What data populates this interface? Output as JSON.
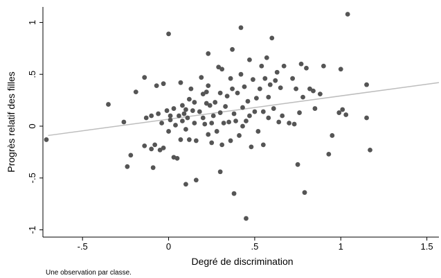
{
  "note": "Une observation par classe.",
  "colors": {
    "point": "#555555",
    "fit_line": "#bdbdbd",
    "axis": "#000000",
    "background": "#ffffff"
  },
  "chart_data": {
    "type": "scatter",
    "xlabel": "Degré de discrimination",
    "ylabel": "Progrès relatif des filles",
    "xlim": [
      -0.73,
      1.57
    ],
    "ylim": [
      -1.07,
      1.15
    ],
    "x_ticks": [
      -0.5,
      0,
      0.5,
      1,
      1.5
    ],
    "x_tick_labels": [
      "-.5",
      "0",
      ".5",
      "1",
      "1.5"
    ],
    "y_ticks": [
      -1,
      -0.5,
      0,
      0.5,
      1
    ],
    "y_tick_labels": [
      "-1",
      "-.5",
      "0",
      ".5",
      "1"
    ],
    "grid": false,
    "legend": "none",
    "fit_line": {
      "x": [
        -0.7,
        1.57
      ],
      "y": [
        -0.09,
        0.42
      ]
    },
    "points": [
      [
        -0.71,
        -0.13
      ],
      [
        -0.35,
        0.21
      ],
      [
        -0.26,
        0.04
      ],
      [
        -0.24,
        -0.39
      ],
      [
        -0.22,
        -0.28
      ],
      [
        -0.19,
        0.33
      ],
      [
        -0.14,
        0.47
      ],
      [
        -0.14,
        -0.19
      ],
      [
        -0.13,
        0.08
      ],
      [
        -0.1,
        0.1
      ],
      [
        -0.1,
        -0.22
      ],
      [
        -0.09,
        -0.4
      ],
      [
        -0.08,
        -0.18
      ],
      [
        -0.07,
        0.39
      ],
      [
        -0.06,
        0.12
      ],
      [
        -0.05,
        -0.23
      ],
      [
        -0.04,
        0.03
      ],
      [
        -0.03,
        -0.21
      ],
      [
        -0.03,
        0.41
      ],
      [
        -0.01,
        0.15
      ],
      [
        0.0,
        0.89
      ],
      [
        0.0,
        -0.05
      ],
      [
        0.01,
        0.06
      ],
      [
        0.01,
        0.1
      ],
      [
        0.03,
        0.17
      ],
      [
        0.03,
        -0.3
      ],
      [
        0.04,
        0.01
      ],
      [
        0.05,
        -0.31
      ],
      [
        0.06,
        0.1
      ],
      [
        0.07,
        -0.13
      ],
      [
        0.07,
        0.42
      ],
      [
        0.08,
        0.2
      ],
      [
        0.08,
        0.05
      ],
      [
        0.09,
        0.12
      ],
      [
        0.1,
        0.16
      ],
      [
        0.1,
        -0.56
      ],
      [
        0.1,
        -0.03
      ],
      [
        0.11,
        0.08
      ],
      [
        0.12,
        0.26
      ],
      [
        0.12,
        -0.13
      ],
      [
        0.13,
        0.36
      ],
      [
        0.14,
        0.15
      ],
      [
        0.15,
        0.03
      ],
      [
        0.15,
        0.23
      ],
      [
        0.16,
        -0.52
      ],
      [
        0.16,
        -0.14
      ],
      [
        0.18,
        0.14
      ],
      [
        0.19,
        0.47
      ],
      [
        0.2,
        0.31
      ],
      [
        0.2,
        0.08
      ],
      [
        0.21,
        0.02
      ],
      [
        0.22,
        0.33
      ],
      [
        0.22,
        0.22
      ],
      [
        0.23,
        0.39
      ],
      [
        0.23,
        -0.08
      ],
      [
        0.23,
        0.7
      ],
      [
        0.24,
        0.2
      ],
      [
        0.25,
        0.03
      ],
      [
        0.25,
        -0.16
      ],
      [
        0.26,
        0.1
      ],
      [
        0.27,
        0.23
      ],
      [
        0.28,
        -0.05
      ],
      [
        0.29,
        0.57
      ],
      [
        0.3,
        0.13
      ],
      [
        0.3,
        0.32
      ],
      [
        0.3,
        -0.44
      ],
      [
        0.31,
        0.55
      ],
      [
        0.31,
        -0.18
      ],
      [
        0.32,
        0.03
      ],
      [
        0.33,
        0.19
      ],
      [
        0.34,
        0.29
      ],
      [
        0.35,
        0.04
      ],
      [
        0.36,
        -0.14
      ],
      [
        0.36,
        0.46
      ],
      [
        0.37,
        0.36
      ],
      [
        0.37,
        0.74
      ],
      [
        0.38,
        0.12
      ],
      [
        0.38,
        -0.65
      ],
      [
        0.39,
        0.05
      ],
      [
        0.4,
        0.32
      ],
      [
        0.41,
        -0.09
      ],
      [
        0.42,
        0.5
      ],
      [
        0.42,
        0.95
      ],
      [
        0.43,
        0.18
      ],
      [
        0.43,
        0.0
      ],
      [
        0.44,
        0.38
      ],
      [
        0.45,
        0.05
      ],
      [
        0.45,
        -0.89
      ],
      [
        0.46,
        0.24
      ],
      [
        0.47,
        0.1
      ],
      [
        0.47,
        0.64
      ],
      [
        0.48,
        -0.2
      ],
      [
        0.49,
        0.45
      ],
      [
        0.5,
        0.14
      ],
      [
        0.51,
        0.27
      ],
      [
        0.52,
        -0.05
      ],
      [
        0.53,
        0.36
      ],
      [
        0.54,
        0.58
      ],
      [
        0.55,
        0.14
      ],
      [
        0.55,
        -0.18
      ],
      [
        0.56,
        0.46
      ],
      [
        0.57,
        0.66
      ],
      [
        0.58,
        0.08
      ],
      [
        0.58,
        0.28
      ],
      [
        0.59,
        0.4
      ],
      [
        0.6,
        0.85
      ],
      [
        0.61,
        0.17
      ],
      [
        0.62,
        0.44
      ],
      [
        0.63,
        0.52
      ],
      [
        0.64,
        0.04
      ],
      [
        0.65,
        0.37
      ],
      [
        0.66,
        0.1
      ],
      [
        0.67,
        0.58
      ],
      [
        0.7,
        0.03
      ],
      [
        0.72,
        0.46
      ],
      [
        0.73,
        0.02
      ],
      [
        0.74,
        0.36
      ],
      [
        0.75,
        -0.37
      ],
      [
        0.76,
        0.13
      ],
      [
        0.77,
        0.6
      ],
      [
        0.78,
        0.28
      ],
      [
        0.79,
        -0.64
      ],
      [
        0.8,
        0.56
      ],
      [
        0.82,
        0.36
      ],
      [
        0.84,
        0.34
      ],
      [
        0.85,
        0.17
      ],
      [
        0.88,
        0.31
      ],
      [
        0.9,
        0.58
      ],
      [
        0.93,
        -0.27
      ],
      [
        0.95,
        -0.09
      ],
      [
        0.99,
        0.13
      ],
      [
        1.0,
        0.55
      ],
      [
        1.01,
        0.16
      ],
      [
        1.03,
        0.11
      ],
      [
        1.04,
        1.08
      ],
      [
        1.15,
        0.4
      ],
      [
        1.15,
        0.08
      ],
      [
        1.17,
        -0.23
      ]
    ]
  }
}
